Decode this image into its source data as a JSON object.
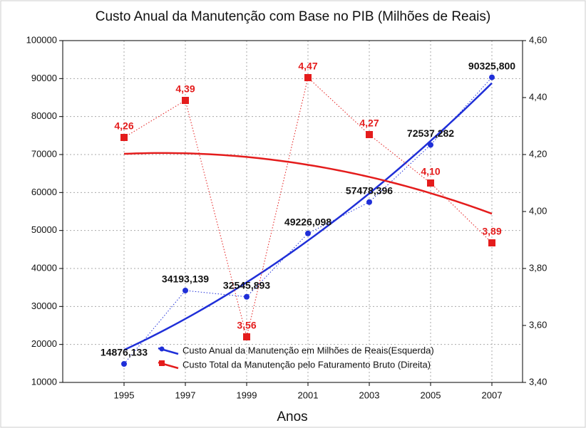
{
  "chart_data": {
    "type": "line",
    "title": "Custo Anual da Manutenção com Base no PIB (Milhões de Reais)",
    "xlabel": "Anos",
    "x": [
      1995,
      1997,
      1999,
      2001,
      2003,
      2005,
      2007
    ],
    "xlim": [
      1993,
      2008
    ],
    "xticks": [
      1995,
      1997,
      1999,
      2001,
      2003,
      2005,
      2007
    ],
    "ylim": [
      10000,
      100000
    ],
    "yticks": [
      10000,
      20000,
      30000,
      40000,
      50000,
      60000,
      70000,
      80000,
      90000,
      100000
    ],
    "y2lim": [
      3.4,
      4.6
    ],
    "y2ticks": [
      {
        "value": 3.4,
        "label": "3,40"
      },
      {
        "value": 3.6,
        "label": "3,60"
      },
      {
        "value": 3.8,
        "label": "3,80"
      },
      {
        "value": 4.0,
        "label": "4,00"
      },
      {
        "value": 4.2,
        "label": "4,20"
      },
      {
        "value": 4.4,
        "label": "4,40"
      },
      {
        "value": 4.6,
        "label": "4,60"
      }
    ],
    "grid": true,
    "legend": "bottom-left",
    "series": [
      {
        "name": "Custo Anual da Manutenção em Milhões de Reais(Esquerda)",
        "color": "#1f2fd8",
        "axis": "y",
        "values": [
          14876.133,
          34193.139,
          32545.893,
          49226.098,
          57478.396,
          72537.282,
          90325.8
        ],
        "value_labels": [
          "14876,133",
          "34193,139",
          "32545,893",
          "49226,098",
          "57478,396",
          "72537,282",
          "90325,800"
        ]
      },
      {
        "name": "Custo Total da Manutenção pelo Faturamento Bruto (Direita)",
        "color": "#e41c1c",
        "axis": "y2",
        "values": [
          4.26,
          4.39,
          3.56,
          4.47,
          4.27,
          4.1,
          3.89
        ],
        "value_labels": [
          "4,26",
          "4,39",
          "3,56",
          "4,47",
          "4,27",
          "4,10",
          "3,89"
        ]
      }
    ]
  }
}
